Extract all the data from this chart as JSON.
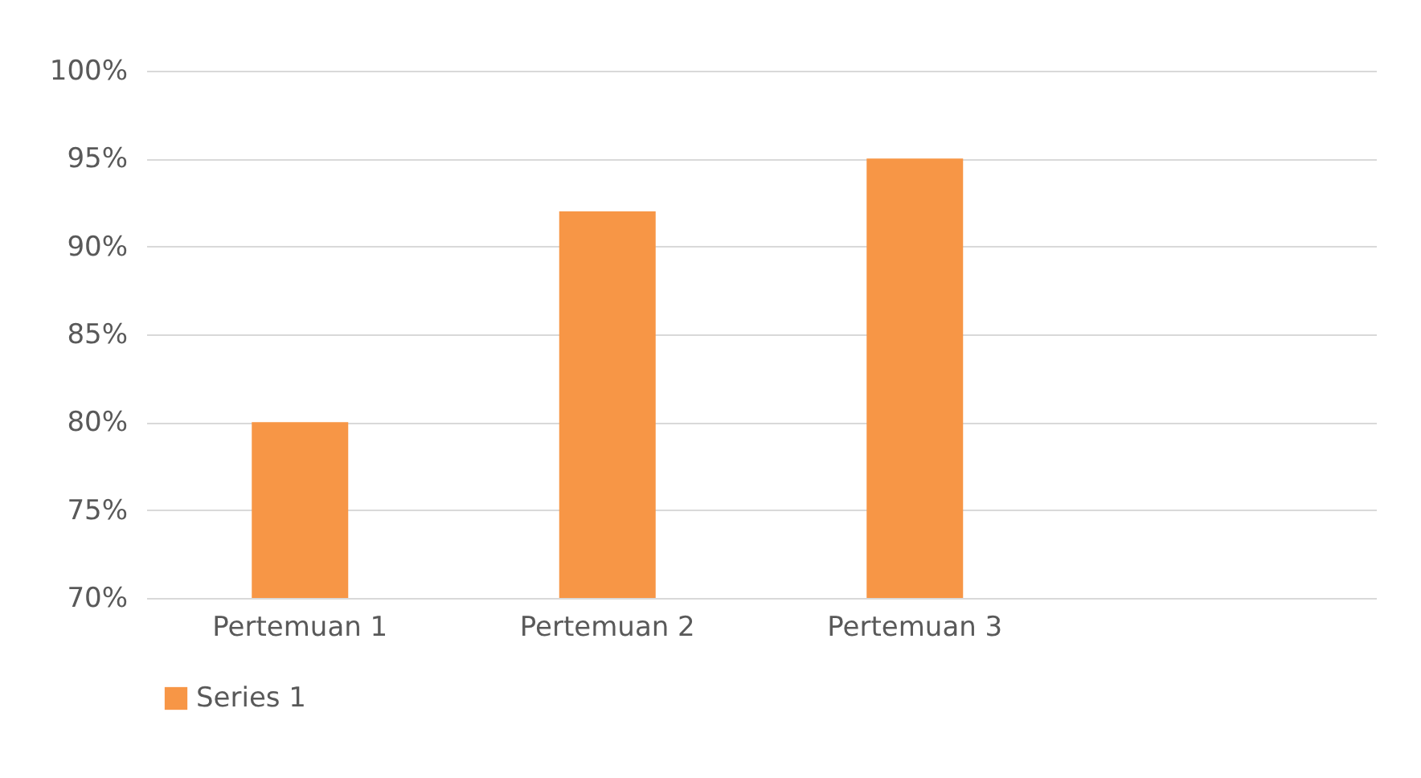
{
  "chart_data": {
    "type": "bar",
    "categories": [
      "Pertemuan 1",
      "Pertemuan 2",
      "Pertemuan 3",
      null
    ],
    "series": [
      {
        "name": "Series 1",
        "color": "#f79646",
        "values": [
          80,
          92,
          95,
          null
        ]
      }
    ],
    "ylim": [
      70,
      100
    ],
    "yticks": [
      {
        "value": 70,
        "label": "70%"
      },
      {
        "value": 75,
        "label": "75%"
      },
      {
        "value": 80,
        "label": "80%"
      },
      {
        "value": 85,
        "label": "85%"
      },
      {
        "value": 90,
        "label": "90%"
      },
      {
        "value": 95,
        "label": "95%"
      },
      {
        "value": 100,
        "label": "100%"
      }
    ],
    "grid": "y",
    "legend": "bottom"
  }
}
